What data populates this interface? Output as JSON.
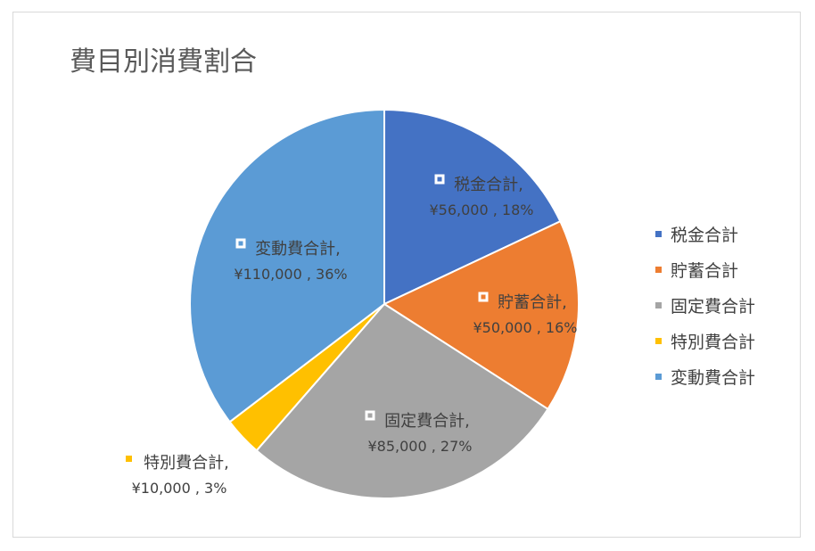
{
  "chart_data": {
    "type": "pie",
    "title": "費目別消費割合",
    "categories": [
      "税金合計",
      "貯蓄合計",
      "固定費合計",
      "特別費合計",
      "変動費合計"
    ],
    "values": [
      56000,
      50000,
      85000,
      10000,
      110000
    ],
    "percent_labels": [
      "18%",
      "16%",
      "27%",
      "3%",
      "36%"
    ],
    "value_labels": [
      "¥56,000",
      "¥50,000",
      "¥85,000",
      "¥10,000",
      "¥110,000"
    ],
    "colors": [
      "#4472c4",
      "#ed7d31",
      "#a5a5a5",
      "#ffc000",
      "#5b9bd5"
    ],
    "legend_position": "right",
    "start_angle": "12-o'clock",
    "direction": "clockwise"
  }
}
